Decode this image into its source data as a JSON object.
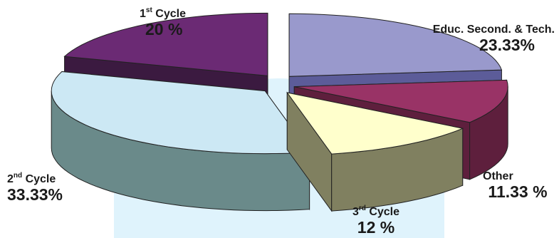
{
  "chart_data": {
    "type": "pie",
    "style": "3d-exploded",
    "slices": [
      {
        "name": "Educ. Second. & Tech.",
        "value_label": "23.33%",
        "value": 23.33,
        "top_color": "#9999cc",
        "side_color": "#5c5c99"
      },
      {
        "name": "Other",
        "value_label": "11.33 %",
        "value": 11.33,
        "top_color": "#993366",
        "side_color": "#5e1f3d"
      },
      {
        "name": "3rd Cycle",
        "value_label": "12 %",
        "value": 12.0,
        "top_color": "#ffffcc",
        "side_color": "#808060"
      },
      {
        "name": "2nd Cycle",
        "value_label": "33.33%",
        "value": 33.33,
        "top_color": "#cce8f4",
        "side_color": "#6a8a8a"
      },
      {
        "name": "1st Cycle",
        "value_label": "20 %",
        "value": 20.0,
        "top_color": "#6b2a74",
        "side_color": "#3b1a40"
      }
    ],
    "watermark_color": "#d9f1fb",
    "legend": "none"
  }
}
